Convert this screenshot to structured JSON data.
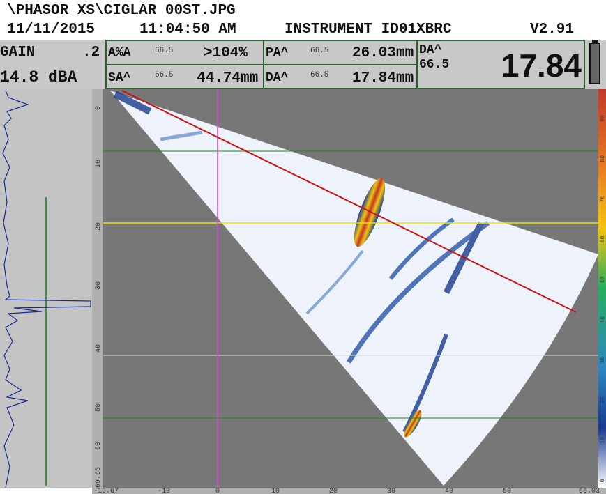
{
  "header": {
    "file": "\\PHASOR XS\\CIGLAR 00ST.JPG",
    "date": "11/11/2015",
    "time": "11:04:50 AM",
    "instrument": "INSTRUMENT ID01XBRC",
    "version": "V2.91"
  },
  "gain": {
    "label": "GAIN",
    "step": ".2",
    "value": "14.8 dBA"
  },
  "readings": [
    {
      "label": "A%A",
      "angle": "66.5",
      "value": ">104%"
    },
    {
      "label": "PA^",
      "angle": "66.5",
      "value": "26.03mm"
    },
    {
      "label": "SA^",
      "angle": "66.5",
      "value": "44.74mm"
    },
    {
      "label": "DA^",
      "angle": "66.5",
      "value": "17.84mm"
    }
  ],
  "big_reading": {
    "label": "DA^",
    "angle": "66.5",
    "value": "17.84"
  },
  "bottom_scale": [
    "-19.67",
    "-10",
    "0",
    "10",
    "20",
    "30",
    "40",
    "50",
    "66.03"
  ],
  "left_scale": [
    "0",
    "10",
    "20",
    "30",
    "40",
    "50",
    "60",
    "69.65"
  ],
  "color_scale": [
    "90",
    "80",
    "70",
    "60",
    "50",
    "40",
    "30",
    "20",
    "10",
    "0"
  ]
}
